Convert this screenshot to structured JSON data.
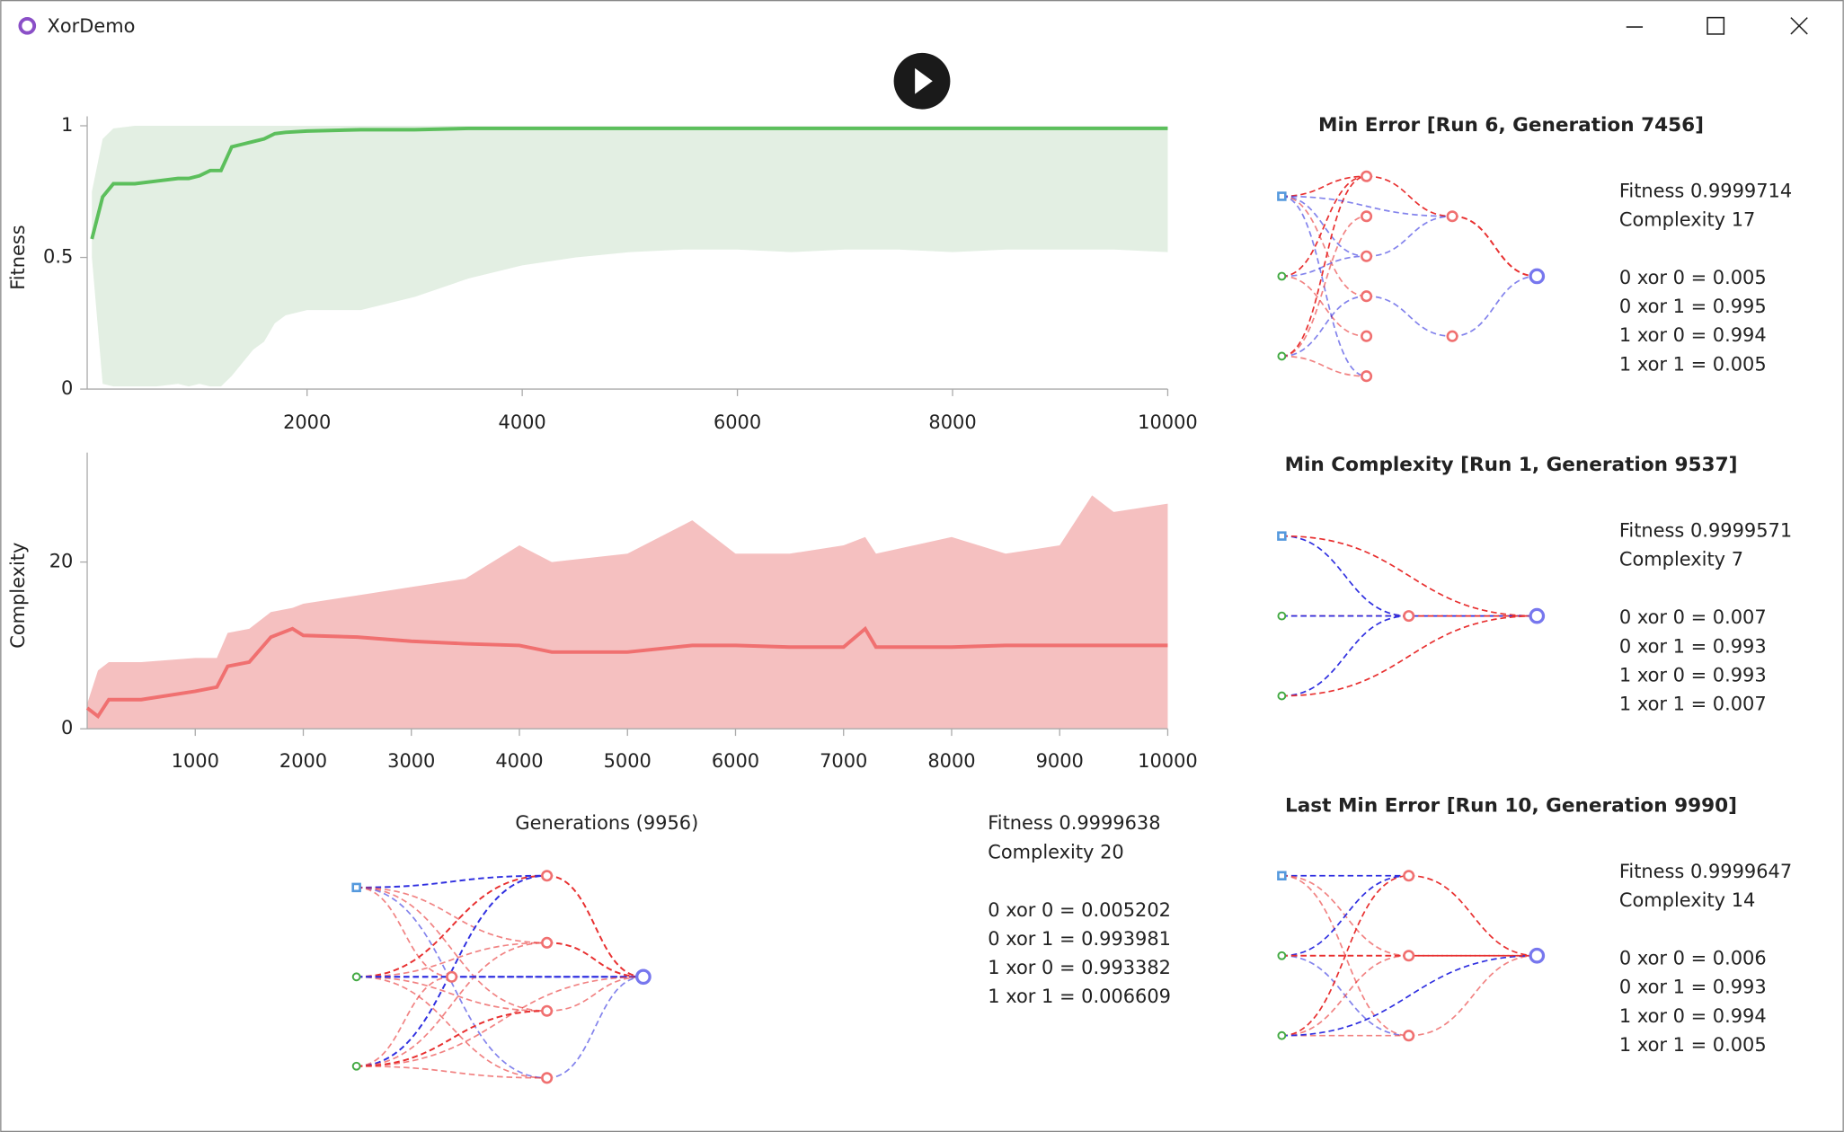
{
  "window": {
    "title": "XorDemo"
  },
  "chart_data": [
    {
      "type": "line",
      "ylabel": "Fitness",
      "x": [
        0,
        100,
        200,
        400,
        600,
        800,
        900,
        1000,
        1100,
        1200,
        1300,
        1400,
        1500,
        1600,
        1700,
        1800,
        2000,
        2500,
        3000,
        3500,
        4000,
        4500,
        5000,
        5500,
        6000,
        6500,
        7000,
        7500,
        8000,
        8500,
        9000,
        9500,
        10000
      ],
      "values": [
        0.57,
        0.73,
        0.78,
        0.78,
        0.79,
        0.8,
        0.8,
        0.81,
        0.83,
        0.83,
        0.92,
        0.93,
        0.94,
        0.95,
        0.97,
        0.975,
        0.98,
        0.985,
        0.985,
        0.99,
        0.99,
        0.99,
        0.99,
        0.99,
        0.99,
        0.99,
        0.99,
        0.99,
        0.99,
        0.99,
        0.99,
        0.99,
        0.99
      ],
      "upper": [
        0.75,
        0.95,
        0.99,
        1,
        1,
        1,
        1,
        1,
        1,
        1,
        1,
        1,
        1,
        1,
        1,
        1,
        1,
        1,
        1,
        1,
        1,
        1,
        1,
        1,
        1,
        1,
        1,
        1,
        1,
        1,
        1,
        1,
        1
      ],
      "lower": [
        0.5,
        0.02,
        0.01,
        0.01,
        0.01,
        0.02,
        0.01,
        0.02,
        0.01,
        0.01,
        0.05,
        0.1,
        0.15,
        0.18,
        0.25,
        0.28,
        0.3,
        0.3,
        0.35,
        0.42,
        0.47,
        0.5,
        0.52,
        0.53,
        0.53,
        0.52,
        0.53,
        0.53,
        0.52,
        0.53,
        0.53,
        0.53,
        0.52
      ],
      "color": "#5cbf5c",
      "band_color": "#e3efe3",
      "xlim": [
        0,
        10000
      ],
      "xticks": [
        2000,
        4000,
        6000,
        8000,
        10000
      ],
      "ylim": [
        0,
        1
      ],
      "yticks": [
        0,
        0.5,
        1
      ]
    },
    {
      "type": "line",
      "ylabel": "Complexity",
      "xlabel": "Generations (9956)",
      "x": [
        0,
        100,
        200,
        500,
        1000,
        1200,
        1300,
        1500,
        1700,
        1900,
        2000,
        2500,
        3000,
        3500,
        4000,
        4300,
        5000,
        5600,
        6000,
        6500,
        7000,
        7200,
        7300,
        8000,
        8500,
        9000,
        9300,
        9500,
        10000
      ],
      "values": [
        2.5,
        1.5,
        3.5,
        3.5,
        4.5,
        5,
        7.5,
        8,
        11,
        12,
        11.2,
        11,
        10.5,
        10.2,
        10,
        9.2,
        9.2,
        10,
        10,
        9.8,
        9.8,
        12,
        9.8,
        9.8,
        10,
        10,
        10,
        10,
        10
      ],
      "upper": [
        3,
        7,
        8,
        8,
        8.5,
        8.5,
        11.5,
        12,
        14,
        14.5,
        15,
        16,
        17,
        18,
        22,
        20,
        21,
        25,
        21,
        21,
        22,
        23,
        21,
        23,
        21,
        22,
        28,
        26,
        27
      ],
      "lower": [
        0,
        0,
        0,
        0,
        0,
        0,
        0,
        0,
        0,
        0,
        0,
        0,
        0,
        0,
        0,
        0,
        0,
        0,
        0,
        0,
        0,
        0,
        0,
        0,
        0,
        0,
        0,
        0,
        0
      ],
      "color": "#f07070",
      "band_color": "#f5c0c0",
      "xlim": [
        0,
        10000
      ],
      "xticks": [
        1000,
        2000,
        3000,
        4000,
        5000,
        6000,
        7000,
        8000,
        9000,
        10000
      ],
      "ylim": [
        0,
        32
      ],
      "yticks": [
        0,
        20
      ]
    }
  ],
  "current": {
    "stats": [
      "Fitness 0.9999638",
      "Complexity 20"
    ],
    "outputs": [
      "0 xor 0 = 0.005202",
      "0 xor 1 = 0.993981",
      "1 xor 0 = 0.993382",
      "1 xor 1 = 0.006609"
    ]
  },
  "panels": [
    {
      "title": "Min Error [Run 6, Generation 7456]",
      "stats": [
        "Fitness 0.9999714",
        "Complexity 17"
      ],
      "outputs": [
        "0 xor 0 = 0.005",
        "0 xor 1 = 0.995",
        "1 xor 0 = 0.994",
        "1 xor 1 = 0.005"
      ]
    },
    {
      "title": "Min Complexity [Run 1, Generation 9537]",
      "stats": [
        "Fitness 0.9999571",
        "Complexity 7"
      ],
      "outputs": [
        "0 xor 0 = 0.007",
        "0 xor 1 = 0.993",
        "1 xor 0 = 0.993",
        "1 xor 1 = 0.007"
      ]
    },
    {
      "title": "Last Min Error [Run 10, Generation 9990]",
      "stats": [
        "Fitness 0.9999647",
        "Complexity 14"
      ],
      "outputs": [
        "0 xor 0 = 0.006",
        "0 xor 1 = 0.993",
        "1 xor 0 = 0.994",
        "1 xor 1 = 0.005"
      ]
    }
  ]
}
